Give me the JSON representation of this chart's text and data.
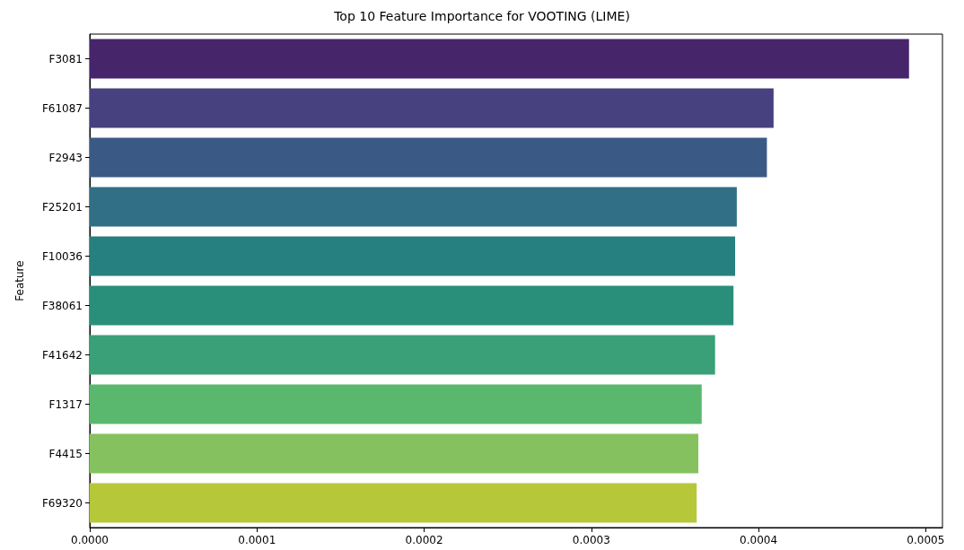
{
  "chart_data": {
    "type": "bar",
    "orientation": "horizontal",
    "title": "Top 10 Feature Importance for VOOTING (LIME)",
    "ylabel": "Feature",
    "categories": [
      "F3081",
      "F61087",
      "F2943",
      "F25201",
      "F10036",
      "F38061",
      "F41642",
      "F1317",
      "F4415",
      "F69320"
    ],
    "values": [
      0.00049,
      0.000409,
      0.000405,
      0.000387,
      0.000386,
      0.000385,
      0.000374,
      0.000366,
      0.000364,
      0.000363
    ],
    "colors": [
      "#46256b",
      "#48417f",
      "#3a5a85",
      "#306f86",
      "#26807f",
      "#2a8f7a",
      "#39a077",
      "#5ab86e",
      "#85c25f",
      "#b6c83a"
    ],
    "xlim": [
      0,
      0.00051
    ],
    "xticks": [
      {
        "value": 0,
        "label": "0.0000"
      },
      {
        "value": 0.0001,
        "label": "0.0001"
      },
      {
        "value": 0.0002,
        "label": "0.0002"
      },
      {
        "value": 0.0003,
        "label": "0.0003"
      },
      {
        "value": 0.0004,
        "label": "0.0004"
      },
      {
        "value": 0.0005,
        "label": "0.0005"
      }
    ],
    "grid": false
  }
}
